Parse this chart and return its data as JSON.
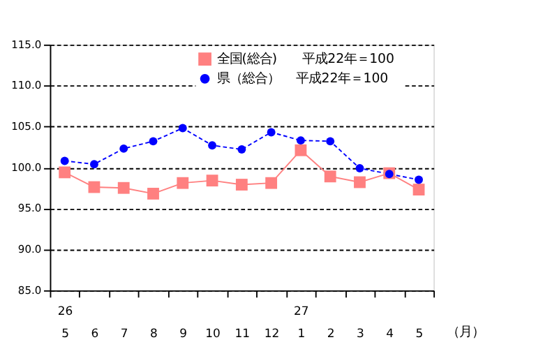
{
  "chart_data": {
    "type": "line",
    "categories": [
      "26\n5",
      "6",
      "7",
      "8",
      "9",
      "10",
      "11",
      "12",
      "27\n1",
      "2",
      "3",
      "4",
      "5"
    ],
    "xlabel": "（月）",
    "series": [
      {
        "name": "全国(総合)　　平成22年＝100",
        "color": "#ff8080",
        "marker": "square",
        "line_style": "solid",
        "values": [
          99.4,
          97.6,
          97.5,
          96.8,
          98.1,
          98.4,
          97.9,
          98.1,
          102.1,
          98.9,
          98.2,
          99.3,
          97.3
        ]
      },
      {
        "name": "県（総合）　 平成22年＝100",
        "color": "#0000ff",
        "marker": "circle",
        "line_style": "dashed",
        "values": [
          100.8,
          100.4,
          102.3,
          103.2,
          104.8,
          102.7,
          102.2,
          104.3,
          103.3,
          103.2,
          99.9,
          99.2,
          98.5
        ]
      }
    ],
    "ylim": [
      85,
      115
    ],
    "yticks": [
      {
        "value": 85,
        "label": "85.0"
      },
      {
        "value": 90,
        "label": "90.0"
      },
      {
        "value": 95,
        "label": "95.0"
      },
      {
        "value": 100,
        "label": "100.0"
      },
      {
        "value": 105,
        "label": "105.0"
      },
      {
        "value": 110,
        "label": "110.0"
      },
      {
        "value": 115,
        "label": "115.0"
      }
    ],
    "grid": "y",
    "legend": "top"
  }
}
